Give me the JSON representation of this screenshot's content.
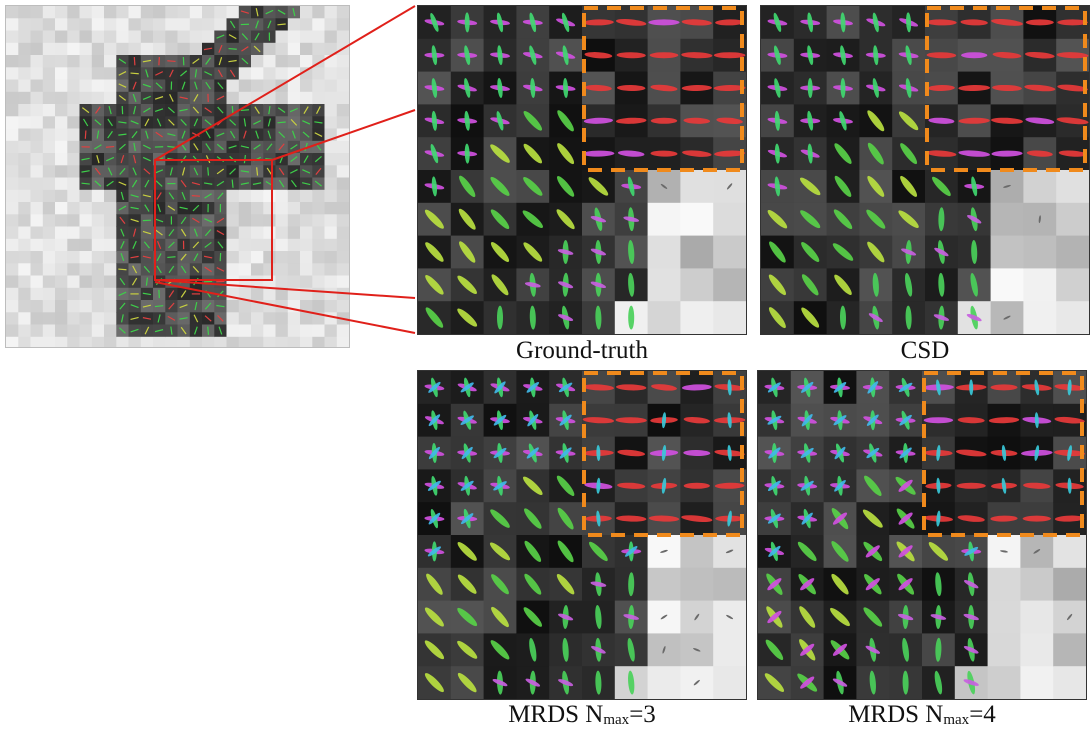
{
  "figure": {
    "colors": {
      "zoom_box": "#e0201a",
      "highlight_box": "#f08a1c",
      "overview_background": "#d9d9d9",
      "overview_tissue": "#5a5a5a"
    },
    "panels": [
      {
        "key": "gt",
        "caption_main": "Ground-truth",
        "caption_sub": "",
        "caption_tail": ""
      },
      {
        "key": "csd",
        "caption_main": "CSD",
        "caption_sub": "",
        "caption_tail": ""
      },
      {
        "key": "mrds3",
        "caption_main": "MRDS N",
        "caption_sub": "max",
        "caption_tail": "=3"
      },
      {
        "key": "mrds4",
        "caption_main": "MRDS N",
        "caption_sub": "max",
        "caption_tail": "=4"
      }
    ]
  }
}
